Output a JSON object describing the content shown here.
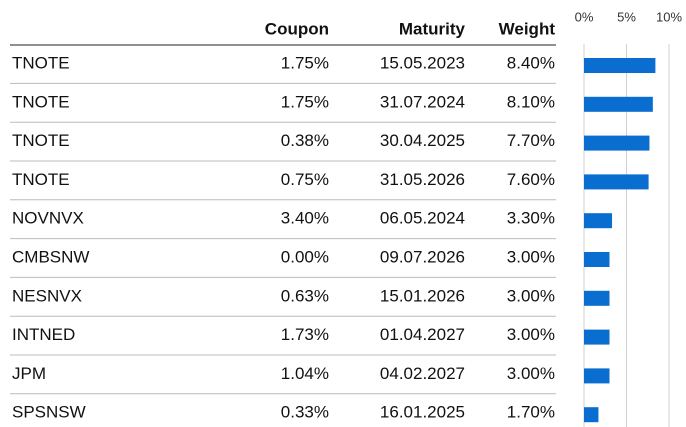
{
  "chart_data": {
    "type": "bar",
    "orientation": "horizontal",
    "categories": [
      "TNOTE",
      "TNOTE",
      "TNOTE",
      "TNOTE",
      "NOVNVX",
      "CMBSNW",
      "NESNVX",
      "INTNED",
      "JPM",
      "SPSNSW"
    ],
    "columns": [
      {
        "header": "Coupon",
        "cells": [
          "1.75%",
          "1.75%",
          "0.38%",
          "0.75%",
          "3.40%",
          "0.00%",
          "0.63%",
          "1.73%",
          "1.04%",
          "0.33%"
        ]
      },
      {
        "header": "Maturity",
        "cells": [
          "15.05.2023",
          "31.07.2024",
          "30.04.2025",
          "31.05.2026",
          "06.05.2024",
          "09.07.2026",
          "15.01.2026",
          "01.04.2027",
          "04.02.2027",
          "16.01.2025"
        ]
      }
    ],
    "series": [
      {
        "name": "Weight",
        "color": "#0a6ed1",
        "values": [
          8.4,
          8.1,
          7.7,
          7.6,
          3.3,
          3.0,
          3.0,
          3.0,
          3.0,
          1.7
        ],
        "value_labels": [
          "8.40%",
          "8.10%",
          "7.70%",
          "7.60%",
          "3.30%",
          "3.00%",
          "3.00%",
          "3.00%",
          "3.00%",
          "1.70%"
        ]
      }
    ],
    "xlim": [
      0,
      10
    ],
    "xticks": [
      {
        "value": 0,
        "label": "0%"
      },
      {
        "value": 5,
        "label": "5%"
      },
      {
        "value": 10,
        "label": "10%"
      }
    ],
    "grid": true
  }
}
